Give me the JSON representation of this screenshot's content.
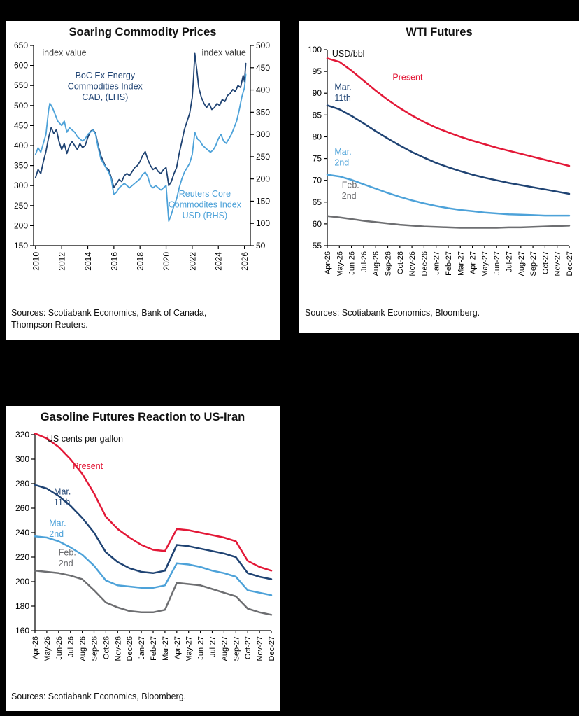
{
  "page": {
    "background": "#000000"
  },
  "colors": {
    "red": "#e31837",
    "navy": "#1f4373",
    "light_blue": "#4da2d9",
    "gray": "#6d6e71",
    "axis": "#000000"
  },
  "chart_data": [
    {
      "id": "commodity",
      "type": "line",
      "title": "Soaring Commodity Prices",
      "y_axis": {
        "label": "index value",
        "min": 150,
        "max": 650,
        "step": 50
      },
      "y2_axis": {
        "label": "index value",
        "min": 50,
        "max": 500,
        "step": 50
      },
      "x_axis": {
        "type": "numeric",
        "min": 2009.85,
        "max": 2026.45,
        "tick_start": 2010,
        "tick_end": 2026,
        "tick_step": 2
      },
      "grid": false,
      "legend_position": "in-plot-annotations",
      "series": [
        {
          "name": "BoC Ex Energy Commodities Index CAD, (LHS)",
          "color": "#1f4373",
          "axis": "y",
          "width": 1.8,
          "x": [
            2010.0,
            2010.2,
            2010.4,
            2010.6,
            2010.8,
            2011.0,
            2011.2,
            2011.4,
            2011.6,
            2011.8,
            2012.0,
            2012.2,
            2012.4,
            2012.6,
            2012.8,
            2013.0,
            2013.2,
            2013.4,
            2013.6,
            2013.8,
            2014.0,
            2014.2,
            2014.4,
            2014.6,
            2014.8,
            2015.0,
            2015.2,
            2015.4,
            2015.6,
            2015.8,
            2016.0,
            2016.2,
            2016.4,
            2016.6,
            2016.8,
            2017.0,
            2017.2,
            2017.4,
            2017.6,
            2017.8,
            2018.0,
            2018.2,
            2018.4,
            2018.6,
            2018.8,
            2019.0,
            2019.2,
            2019.4,
            2019.6,
            2019.8,
            2020.0,
            2020.2,
            2020.4,
            2020.6,
            2020.8,
            2021.0,
            2021.2,
            2021.4,
            2021.6,
            2021.8,
            2022.0,
            2022.1,
            2022.2,
            2022.35,
            2022.5,
            2022.7,
            2022.9,
            2023.1,
            2023.3,
            2023.5,
            2023.7,
            2023.9,
            2024.1,
            2024.3,
            2024.5,
            2024.7,
            2024.9,
            2025.1,
            2025.3,
            2025.5,
            2025.7,
            2025.9,
            2026.0,
            2026.1
          ],
          "values": [
            320,
            340,
            330,
            360,
            385,
            420,
            445,
            430,
            440,
            410,
            390,
            405,
            380,
            400,
            410,
            400,
            390,
            405,
            395,
            400,
            420,
            435,
            440,
            430,
            400,
            375,
            360,
            345,
            340,
            320,
            295,
            305,
            315,
            310,
            325,
            330,
            325,
            335,
            345,
            350,
            360,
            375,
            385,
            365,
            350,
            340,
            345,
            335,
            330,
            340,
            345,
            300,
            310,
            330,
            345,
            380,
            410,
            440,
            460,
            480,
            520,
            570,
            630,
            590,
            545,
            520,
            505,
            495,
            505,
            490,
            495,
            505,
            500,
            515,
            510,
            525,
            530,
            540,
            535,
            550,
            545,
            575,
            560,
            605
          ]
        },
        {
          "name": "Reuters Core Commodites Index USD (RHS)",
          "color": "#4da2d9",
          "axis": "y2",
          "width": 1.8,
          "x": [
            2010.0,
            2010.2,
            2010.4,
            2010.6,
            2010.8,
            2011.0,
            2011.1,
            2011.3,
            2011.5,
            2011.7,
            2012.0,
            2012.2,
            2012.4,
            2012.6,
            2012.8,
            2013.0,
            2013.2,
            2013.4,
            2013.6,
            2013.8,
            2014.0,
            2014.2,
            2014.4,
            2014.6,
            2014.8,
            2015.0,
            2015.2,
            2015.4,
            2015.6,
            2015.8,
            2016.0,
            2016.2,
            2016.4,
            2016.6,
            2016.8,
            2017.0,
            2017.2,
            2017.4,
            2017.6,
            2017.8,
            2018.0,
            2018.2,
            2018.4,
            2018.6,
            2018.8,
            2019.0,
            2019.2,
            2019.4,
            2019.6,
            2019.8,
            2020.0,
            2020.2,
            2020.4,
            2020.6,
            2020.8,
            2021.0,
            2021.2,
            2021.4,
            2021.6,
            2021.8,
            2022.0,
            2022.2,
            2022.4,
            2022.6,
            2022.8,
            2023.0,
            2023.2,
            2023.4,
            2023.6,
            2023.8,
            2024.0,
            2024.2,
            2024.4,
            2024.6,
            2024.8,
            2025.0,
            2025.2,
            2025.4,
            2025.6,
            2025.8,
            2026.0,
            2026.1
          ],
          "values": [
            255,
            270,
            260,
            280,
            300,
            355,
            370,
            360,
            345,
            330,
            320,
            330,
            305,
            315,
            310,
            305,
            295,
            290,
            285,
            290,
            300,
            305,
            310,
            300,
            270,
            245,
            235,
            225,
            215,
            200,
            165,
            170,
            180,
            185,
            190,
            185,
            180,
            185,
            190,
            195,
            200,
            210,
            215,
            205,
            185,
            180,
            185,
            180,
            175,
            180,
            185,
            105,
            120,
            140,
            155,
            180,
            200,
            215,
            225,
            235,
            255,
            305,
            290,
            285,
            275,
            270,
            265,
            260,
            265,
            275,
            290,
            300,
            285,
            280,
            290,
            300,
            315,
            330,
            355,
            385,
            405,
            435
          ]
        }
      ],
      "annotations": [
        {
          "lines": [
            "index value"
          ],
          "fx": 0.04,
          "fy": 0.015,
          "anchor": "start",
          "color": "#3a3a3a",
          "size": 12.5
        },
        {
          "lines": [
            "index value"
          ],
          "fx": 0.98,
          "fy": 0.015,
          "anchor": "end",
          "color": "#3a3a3a",
          "size": 12.5
        },
        {
          "lines": [
            "BoC Ex Energy",
            "Commodities Index",
            "CAD, (LHS)"
          ],
          "fx": 0.33,
          "fy": 0.13,
          "anchor": "middle",
          "color": "#1f4373",
          "size": 12.5
        },
        {
          "lines": [
            "Reuters Core",
            "Commodites Index",
            "USD (RHS)"
          ],
          "fx": 0.79,
          "fy": 0.72,
          "anchor": "middle",
          "color": "#4da2d9",
          "size": 12.5
        }
      ],
      "source_lines": [
        "Sources: Scotiabank Economics, Bank of Canada,",
        "Thompson Reuters."
      ]
    },
    {
      "id": "wti",
      "type": "line",
      "title": "WTI Futures",
      "y_axis": {
        "label": "USD/bbl",
        "min": 55,
        "max": 100,
        "step": 5
      },
      "x_axis": {
        "type": "category",
        "categories": [
          "Apr-26",
          "May-26",
          "Jun-26",
          "Jul-26",
          "Aug-26",
          "Sep-26",
          "Oct-26",
          "Nov-26",
          "Dec-26",
          "Jan-27",
          "Feb-27",
          "Mar-27",
          "Apr-27",
          "May-27",
          "Jun-27",
          "Jul-27",
          "Aug-27",
          "Sep-27",
          "Oct-27",
          "Nov-27",
          "Dec-27"
        ]
      },
      "grid": false,
      "legend_position": "in-plot-annotations",
      "series": [
        {
          "name": "Present",
          "color": "#e31837",
          "axis": "y",
          "width": 2.5,
          "values": [
            98.0,
            97.2,
            95.2,
            92.9,
            90.6,
            88.5,
            86.6,
            84.9,
            83.4,
            82.1,
            81.0,
            80.0,
            79.1,
            78.3,
            77.5,
            76.8,
            76.1,
            75.4,
            74.7,
            74.0,
            73.3
          ]
        },
        {
          "name": "Mar. 11th",
          "color": "#1f4373",
          "axis": "y",
          "width": 2.5,
          "values": [
            87.2,
            86.3,
            84.8,
            83.1,
            81.3,
            79.6,
            78.0,
            76.5,
            75.2,
            74.0,
            73.0,
            72.1,
            71.3,
            70.6,
            70.0,
            69.4,
            68.9,
            68.4,
            67.9,
            67.4,
            66.9
          ]
        },
        {
          "name": "Mar. 2nd",
          "color": "#4da2d9",
          "axis": "y",
          "width": 2.5,
          "values": [
            71.3,
            70.9,
            70.1,
            69.1,
            68.1,
            67.1,
            66.2,
            65.4,
            64.7,
            64.1,
            63.6,
            63.2,
            62.9,
            62.6,
            62.4,
            62.2,
            62.1,
            62.0,
            61.9,
            61.9,
            61.9
          ]
        },
        {
          "name": "Feb. 2nd",
          "color": "#6d6e71",
          "axis": "y",
          "width": 2.5,
          "values": [
            61.8,
            61.5,
            61.1,
            60.7,
            60.4,
            60.1,
            59.8,
            59.6,
            59.4,
            59.3,
            59.2,
            59.1,
            59.1,
            59.1,
            59.1,
            59.2,
            59.2,
            59.3,
            59.4,
            59.5,
            59.6
          ]
        }
      ],
      "annotations": [
        {
          "lines": [
            "USD/bbl"
          ],
          "fx": 0.02,
          "fy": 0.0,
          "anchor": "start",
          "color": "#111111",
          "size": 12.5
        },
        {
          "lines": [
            "Present"
          ],
          "fx": 0.27,
          "fy": 0.12,
          "anchor": "start",
          "color": "#e31837",
          "size": 12.5
        },
        {
          "lines": [
            "Mar.",
            "11th"
          ],
          "fx": 0.03,
          "fy": 0.17,
          "anchor": "start",
          "color": "#1f4373",
          "size": 12.5
        },
        {
          "lines": [
            "Mar.",
            "2nd"
          ],
          "fx": 0.03,
          "fy": 0.5,
          "anchor": "start",
          "color": "#4da2d9",
          "size": 12.5
        },
        {
          "lines": [
            "Feb.",
            "2nd"
          ],
          "fx": 0.06,
          "fy": 0.67,
          "anchor": "start",
          "color": "#6d6e71",
          "size": 12.5
        }
      ],
      "source_lines": [
        "Sources: Scotiabank Economics, Bloomberg."
      ]
    },
    {
      "id": "gasoline",
      "type": "line",
      "title": "Gasoline Futures Reaction to US-Iran",
      "y_axis": {
        "label": "US cents per gallon",
        "min": 160,
        "max": 320,
        "step": 20
      },
      "x_axis": {
        "type": "category",
        "categories": [
          "Apr-26",
          "May-26",
          "Jun-26",
          "Jul-26",
          "Aug-26",
          "Sep-26",
          "Oct-26",
          "Nov-26",
          "Dec-26",
          "Jan-27",
          "Feb-27",
          "Mar-27",
          "Apr-27",
          "May-27",
          "Jun-27",
          "Jul-27",
          "Aug-27",
          "Sep-27",
          "Oct-27",
          "Nov-27",
          "Dec-27"
        ]
      },
      "grid": false,
      "legend_position": "in-plot-annotations",
      "series": [
        {
          "name": "Present",
          "color": "#e31837",
          "axis": "y",
          "width": 2.5,
          "values": [
            321,
            317,
            310,
            300,
            288,
            272,
            253,
            243,
            236,
            230,
            226,
            225,
            243,
            242,
            240,
            238,
            236,
            233,
            217,
            212,
            209
          ]
        },
        {
          "name": "Mar. 11th",
          "color": "#1f4373",
          "axis": "y",
          "width": 2.5,
          "values": [
            279,
            276,
            270,
            262,
            252,
            240,
            224,
            216,
            211,
            208,
            207,
            209,
            230,
            229,
            227,
            225,
            223,
            220,
            207,
            204,
            202
          ]
        },
        {
          "name": "Mar. 2nd",
          "color": "#4da2d9",
          "axis": "y",
          "width": 2.5,
          "values": [
            237,
            236,
            233,
            228,
            222,
            213,
            201,
            197,
            196,
            195,
            195,
            197,
            215,
            214,
            212,
            209,
            207,
            204,
            193,
            191,
            189
          ]
        },
        {
          "name": "Feb. 2nd",
          "color": "#6d6e71",
          "axis": "y",
          "width": 2.5,
          "values": [
            209,
            208,
            207,
            205,
            202,
            193,
            183,
            179,
            176,
            175,
            175,
            177,
            199,
            198,
            197,
            194,
            191,
            188,
            178,
            175,
            173
          ]
        }
      ],
      "annotations": [
        {
          "lines": [
            "US cents per gallon"
          ],
          "fx": 0.05,
          "fy": 0.0,
          "anchor": "start",
          "color": "#111111",
          "size": 12.5
        },
        {
          "lines": [
            "Present"
          ],
          "fx": 0.16,
          "fy": 0.14,
          "anchor": "start",
          "color": "#e31837",
          "size": 12.5
        },
        {
          "lines": [
            "Mar.",
            "11th"
          ],
          "fx": 0.08,
          "fy": 0.27,
          "anchor": "start",
          "color": "#1f4373",
          "size": 12.5
        },
        {
          "lines": [
            "Mar.",
            "2nd"
          ],
          "fx": 0.06,
          "fy": 0.43,
          "anchor": "start",
          "color": "#4da2d9",
          "size": 12.5
        },
        {
          "lines": [
            "Feb.",
            "2nd"
          ],
          "fx": 0.1,
          "fy": 0.58,
          "anchor": "start",
          "color": "#6d6e71",
          "size": 12.5
        }
      ],
      "source_lines": [
        "Sources: Scotiabank Economics, Bloomberg."
      ]
    }
  ]
}
